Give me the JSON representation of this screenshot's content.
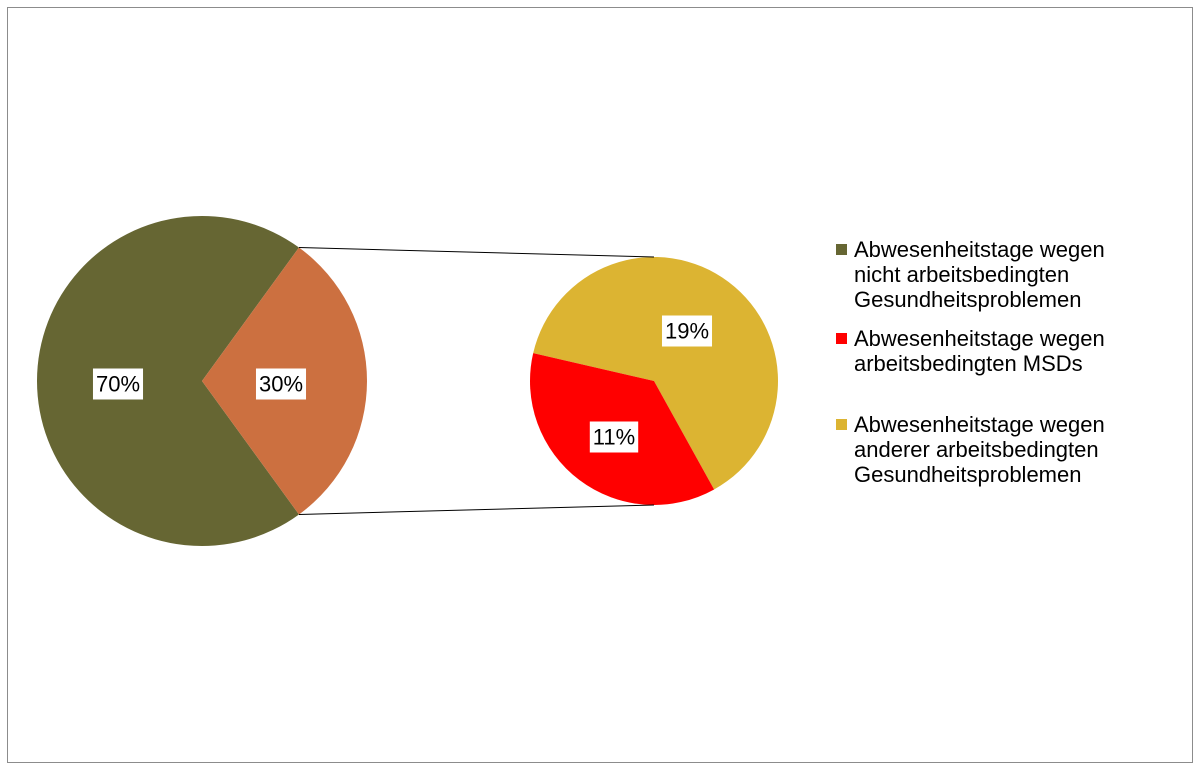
{
  "chart_data": {
    "type": "pie",
    "subtype": "pie-of-pie",
    "primary": {
      "slices": [
        {
          "label": "Abwesenheitstage wegen nicht arbeitsbedingten Gesundheitsproblemen",
          "value": 70,
          "display": "70%",
          "color": "#666633"
        },
        {
          "label": "",
          "value": 30,
          "display": "30%",
          "color": "#cc7040"
        }
      ]
    },
    "secondary": {
      "slices": [
        {
          "label": "Abwesenheitstage wegen arbeitsbedingten MSDs",
          "value": 11,
          "display": "11%",
          "color": "#ff0000"
        },
        {
          "label": "Abwesenheitstage wegen anderer arbeitsbedingten Gesundheitsproblemen",
          "value": 19,
          "display": "19%",
          "color": "#dcb432"
        }
      ]
    },
    "legend": {
      "position": "right",
      "items": [
        {
          "lines": [
            "Abwesenheitstage wegen",
            "nicht arbeitsbedingten",
            "Gesundheitsproblemen"
          ],
          "color": "#666633"
        },
        {
          "lines": [
            "Abwesenheitstage wegen",
            "arbeitsbedingten MSDs"
          ],
          "color": "#ff0000"
        },
        {
          "lines": [
            "Abwesenheitstage wegen",
            "anderer arbeitsbedingten",
            "Gesundheitsproblemen"
          ],
          "color": "#dcb432"
        }
      ]
    }
  }
}
